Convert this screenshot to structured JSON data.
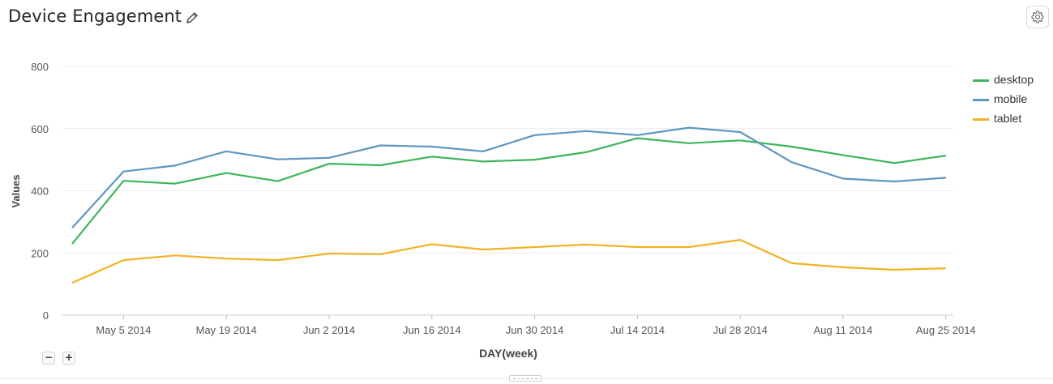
{
  "header": {
    "title": "Device Engagement",
    "edit_icon": "pencil-icon",
    "settings_icon": "gear-icon"
  },
  "controls": {
    "zoom_out_label": "−",
    "zoom_in_label": "+"
  },
  "chart_data": {
    "type": "line",
    "title": "",
    "xlabel": "DAY(week)",
    "ylabel": "Values",
    "ylim": [
      0,
      800
    ],
    "yticks": [
      0,
      200,
      400,
      600,
      800
    ],
    "grid": true,
    "legend_position": "right",
    "x": [
      "Apr 28 2014",
      "May 5 2014",
      "May 12 2014",
      "May 19 2014",
      "May 26 2014",
      "Jun 2 2014",
      "Jun 9 2014",
      "Jun 16 2014",
      "Jun 23 2014",
      "Jun 30 2014",
      "Jul 7 2014",
      "Jul 14 2014",
      "Jul 21 2014",
      "Jul 28 2014",
      "Aug 4 2014",
      "Aug 11 2014",
      "Aug 18 2014",
      "Aug 25 2014"
    ],
    "xticks": [
      "May 5 2014",
      "May 19 2014",
      "Jun 2 2014",
      "Jun 16 2014",
      "Jun 30 2014",
      "Jul 14 2014",
      "Jul 28 2014",
      "Aug 11 2014",
      "Aug 25 2014"
    ],
    "series": [
      {
        "name": "desktop",
        "color": "#3cb55a",
        "values": [
          229,
          432,
          423,
          457,
          431,
          487,
          482,
          510,
          494,
          500,
          524,
          569,
          553,
          562,
          542,
          515,
          489,
          513
        ]
      },
      {
        "name": "mobile",
        "color": "#5e97c0",
        "values": [
          281,
          462,
          481,
          527,
          501,
          506,
          546,
          542,
          527,
          579,
          592,
          579,
          603,
          589,
          492,
          439,
          430,
          442
        ]
      },
      {
        "name": "tablet",
        "color": "#f0b323",
        "values": [
          104,
          177,
          192,
          182,
          177,
          198,
          196,
          228,
          211,
          219,
          227,
          219,
          219,
          242,
          167,
          154,
          146,
          151
        ]
      }
    ]
  }
}
